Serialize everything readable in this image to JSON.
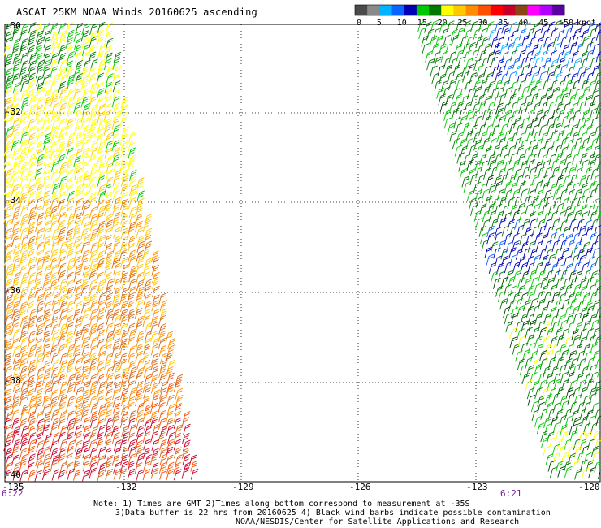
{
  "title": "ASCAT 25KM NOAA Winds 20160625 ascending",
  "colorbar": {
    "units": "knots",
    "tick_labels": [
      "0",
      "5",
      "10",
      "15",
      "20",
      "25",
      "30",
      "35",
      "40",
      "45",
      ">50"
    ],
    "colors": [
      "#4a4a4a",
      "#8a8a8a",
      "#00b4ff",
      "#0a64ff",
      "#0000b4",
      "#00c800",
      "#007800",
      "#ffff00",
      "#ffc800",
      "#ff8c00",
      "#ff5000",
      "#ff0000",
      "#c80028",
      "#8b4513",
      "#ff00ff",
      "#b400ff",
      "#5a00a0"
    ]
  },
  "latitude_labels": [
    "-30",
    "-32",
    "-34",
    "-36",
    "-38",
    "-40"
  ],
  "longitude_labels": [
    "-135",
    "-132",
    "-129",
    "-126",
    "-123",
    "-120"
  ],
  "pass_times": [
    "6:22",
    "6:21"
  ],
  "notes": [
    "Note: 1) Times are GMT 2)Times along bottom correspond to measurement at -35S",
    "3)Data buffer is 22 hrs from 20160625 4) Black wind barbs indicate possible contamination",
    "NOAA/NESDIS/Center for Satellite Applications and Research"
  ]
}
